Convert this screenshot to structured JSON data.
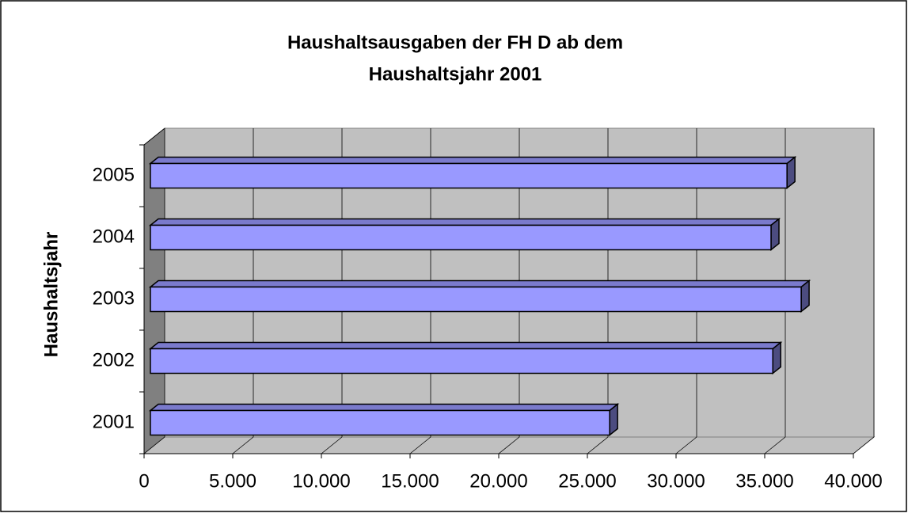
{
  "chart_data": {
    "type": "bar3d_horizontal",
    "title": [
      "Haushaltsausgaben der FH D ab dem",
      "Haushaltsjahr 2001"
    ],
    "y_axis_label": "Haushaltsjahr",
    "categories": [
      "2001",
      "2002",
      "2003",
      "2004",
      "2005"
    ],
    "values": [
      25900,
      35100,
      36700,
      35000,
      35900
    ],
    "color": "#9999ff",
    "xlim": [
      0,
      40000
    ],
    "xticks": [
      0,
      {
        "value": 5000,
        "label": "5.000"
      },
      {
        "value": 10000,
        "label": "10.000"
      },
      {
        "value": 15000,
        "label": "15.000"
      },
      {
        "value": 20000,
        "label": "20.000"
      },
      {
        "value": 25000,
        "label": "25.000"
      },
      {
        "value": 30000,
        "label": "30.000"
      },
      {
        "value": 35000,
        "label": "35.000"
      },
      {
        "value": 40000,
        "label": "40.000"
      }
    ],
    "grid": true
  }
}
